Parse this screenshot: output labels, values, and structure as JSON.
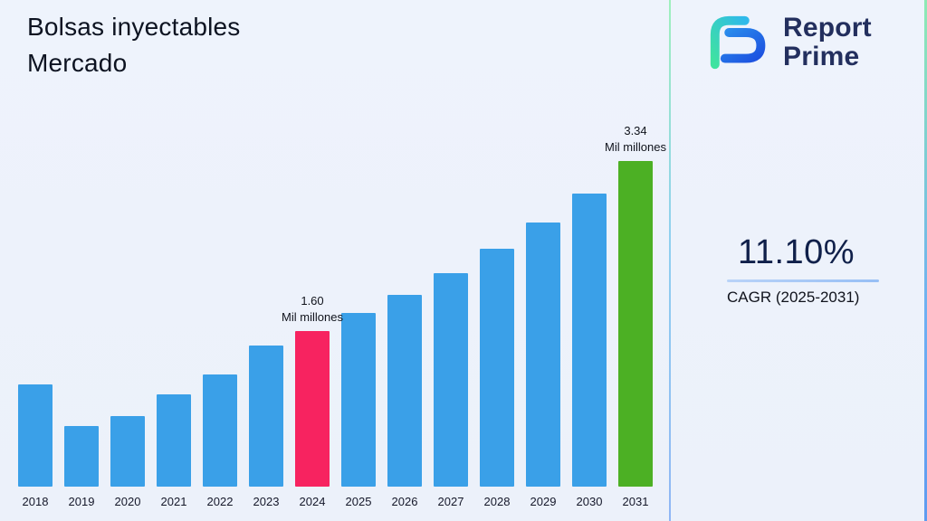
{
  "page": {
    "title_line1": "Bolsas inyectables",
    "title_line2": "Mercado"
  },
  "logo": {
    "line1": "Report",
    "line2": "Prime"
  },
  "stats": {
    "cagr_value": "11.10%",
    "cagr_label": "CAGR (2025-2031)"
  },
  "chart_data": {
    "type": "bar",
    "title": "Bolsas inyectables Mercado",
    "xlabel": "",
    "ylabel": "",
    "unit": "Mil millones",
    "ylim": [
      0,
      3.6
    ],
    "grid": false,
    "legend": false,
    "categories": [
      "2018",
      "2019",
      "2020",
      "2021",
      "2022",
      "2023",
      "2024",
      "2025",
      "2026",
      "2027",
      "2028",
      "2029",
      "2030",
      "2031"
    ],
    "values": [
      1.05,
      0.62,
      0.72,
      0.95,
      1.15,
      1.45,
      1.6,
      1.78,
      1.97,
      2.19,
      2.44,
      2.71,
      3.01,
      3.34
    ],
    "bar_color": "#3aa0e8",
    "highlight_colors": {
      "2024": "#f72360",
      "2031": "#4cb024"
    },
    "annotations": [
      {
        "category": "2024",
        "value_label": "1.60",
        "unit_label": "Mil millones"
      },
      {
        "category": "2031",
        "value_label": "3.34",
        "unit_label": "Mil millones"
      }
    ]
  },
  "colors": {
    "background": "#edf2fb",
    "title_text": "#0d1321",
    "navy_text": "#232f5e",
    "divider_top": "#9ef0bc",
    "divider_bottom": "#8fb6f5"
  }
}
